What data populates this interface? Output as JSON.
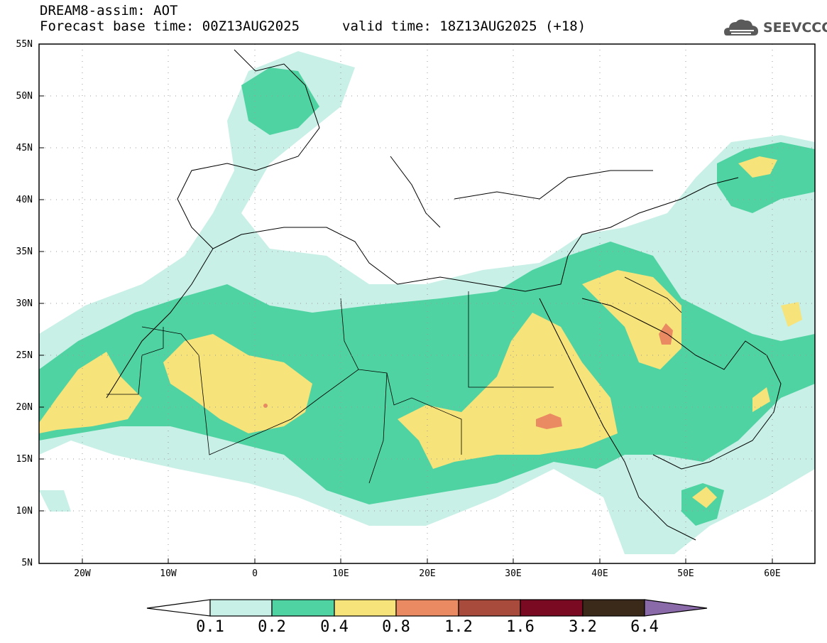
{
  "header": {
    "title": "DREAM8-assim: AOT",
    "forecast_base": "Forecast base time: 00Z13AUG2025",
    "valid_time": "valid time: 18Z13AUG2025 (+18)"
  },
  "logo": {
    "text": "SEEVCCC",
    "icon": "cloud-icon"
  },
  "map": {
    "lat_labels": [
      "55N",
      "50N",
      "45N",
      "40N",
      "35N",
      "30N",
      "25N",
      "20N",
      "15N",
      "10N",
      "5N"
    ],
    "lon_labels": [
      "20W",
      "10W",
      "0",
      "10E",
      "20E",
      "30E",
      "40E",
      "50E",
      "60E"
    ]
  },
  "colorbar": {
    "labels": [
      "0.1",
      "0.2",
      "0.4",
      "0.8",
      "1.2",
      "1.6",
      "3.2",
      "6.4"
    ],
    "colors": [
      "#c8f0e6",
      "#4fd3a2",
      "#f6e37a",
      "#ea8a62",
      "#a84b3c",
      "#7a0a22",
      "#3b2a1a",
      "#8a6aa8"
    ]
  }
}
